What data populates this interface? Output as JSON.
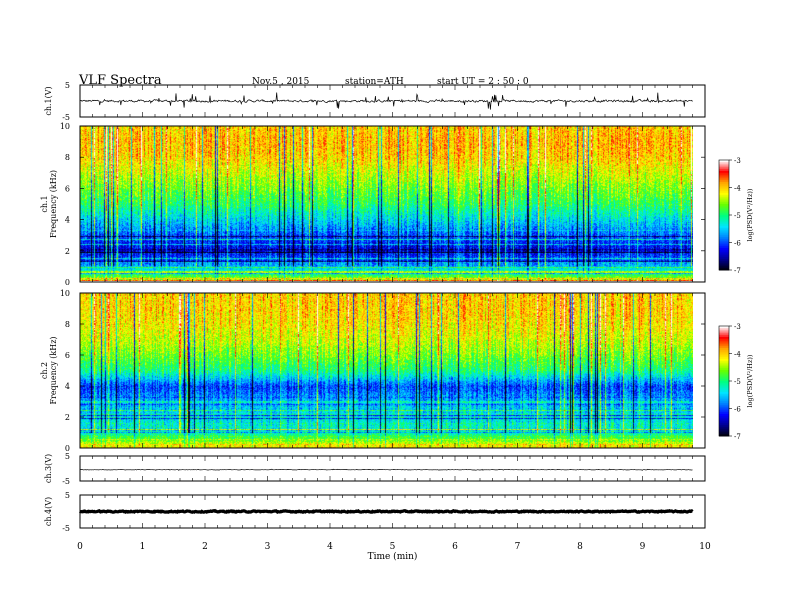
{
  "header": {
    "title": "VLF  Spectra",
    "date": "Nov.5  , 2015",
    "station": "station=ATH",
    "start": "start  UT  =   2  : 50 : 0"
  },
  "colors": {
    "colormap": [
      "#000000",
      "#00008b",
      "#0000ff",
      "#0080ff",
      "#00e5ff",
      "#00ff80",
      "#66ff00",
      "#ffff00",
      "#ffa500",
      "#ff0000",
      "#ffffff"
    ]
  },
  "chart_data": [
    {
      "type": "line",
      "name": "ch1-waveform",
      "ylabel": "ch.1(V)",
      "ylim": [
        -5,
        5
      ],
      "yticks": [
        "5",
        "-5"
      ],
      "xlim": [
        0,
        10
      ],
      "baseline": 0,
      "amplitude": 0.6,
      "spike_amplitude": 2.5
    },
    {
      "type": "heatmap",
      "name": "ch1-spectrogram",
      "ylabel": "ch.1\nFrequency (kHz)",
      "ylim": [
        0,
        10
      ],
      "yticks": [
        "0",
        "2",
        "4",
        "6",
        "8",
        "10"
      ],
      "xlim": [
        0,
        10
      ],
      "data_xmax": 9.8,
      "colorbar": {
        "label": "log(PSD(V²/Hz))",
        "range": [
          -7,
          -3
        ],
        "ticks": [
          "-3",
          "-4",
          "-5",
          "-6",
          "-7"
        ]
      },
      "profile_by_frequency_kHz": [
        [
          0,
          -4.2
        ],
        [
          0.5,
          -5.0
        ],
        [
          1.0,
          -5.6
        ],
        [
          2.0,
          -6.3
        ],
        [
          3.0,
          -5.9
        ],
        [
          4.0,
          -5.4
        ],
        [
          5.0,
          -4.9
        ],
        [
          6.0,
          -4.6
        ],
        [
          7.0,
          -4.3
        ],
        [
          8.0,
          -4.0
        ],
        [
          9.0,
          -3.9
        ],
        [
          10.0,
          -4.0
        ]
      ]
    },
    {
      "type": "heatmap",
      "name": "ch2-spectrogram",
      "ylabel": "ch.2\nFrequency (kHz)",
      "ylim": [
        0,
        10
      ],
      "yticks": [
        "0",
        "2",
        "4",
        "6",
        "8",
        "10"
      ],
      "xlim": [
        0,
        10
      ],
      "data_xmax": 9.8,
      "colorbar": {
        "label": "log(PSD(V²/Hz))",
        "range": [
          -7,
          -3
        ],
        "ticks": [
          "-3",
          "-4",
          "-5",
          "-6",
          "-7"
        ]
      },
      "profile_by_frequency_kHz": [
        [
          0,
          -4.0
        ],
        [
          0.5,
          -4.6
        ],
        [
          1.0,
          -5.1
        ],
        [
          2.0,
          -5.4
        ],
        [
          3.0,
          -5.6
        ],
        [
          4.0,
          -6.0
        ],
        [
          5.0,
          -5.0
        ],
        [
          6.0,
          -4.6
        ],
        [
          7.0,
          -4.3
        ],
        [
          8.0,
          -4.1
        ],
        [
          9.0,
          -4.0
        ],
        [
          10.0,
          -4.0
        ]
      ]
    },
    {
      "type": "line",
      "name": "ch3-waveform",
      "ylabel": "ch.3(V)",
      "ylim": [
        -5,
        5
      ],
      "yticks": [
        "5",
        "-5"
      ],
      "xlim": [
        0,
        10
      ],
      "baseline": -0.5,
      "amplitude": 0.15,
      "spike_amplitude": 0.2
    },
    {
      "type": "line",
      "name": "ch4-waveform",
      "ylabel": "ch.4(V)",
      "ylim": [
        -5,
        5
      ],
      "yticks": [
        "5",
        "-5"
      ],
      "xlim": [
        0,
        10
      ],
      "xlabel": "Time  (min)",
      "xticks": [
        "0",
        "1",
        "2",
        "3",
        "4",
        "5",
        "6",
        "7",
        "8",
        "9",
        "10"
      ],
      "baseline": 0,
      "amplitude": 0.3,
      "spike_amplitude": 0.0
    }
  ]
}
